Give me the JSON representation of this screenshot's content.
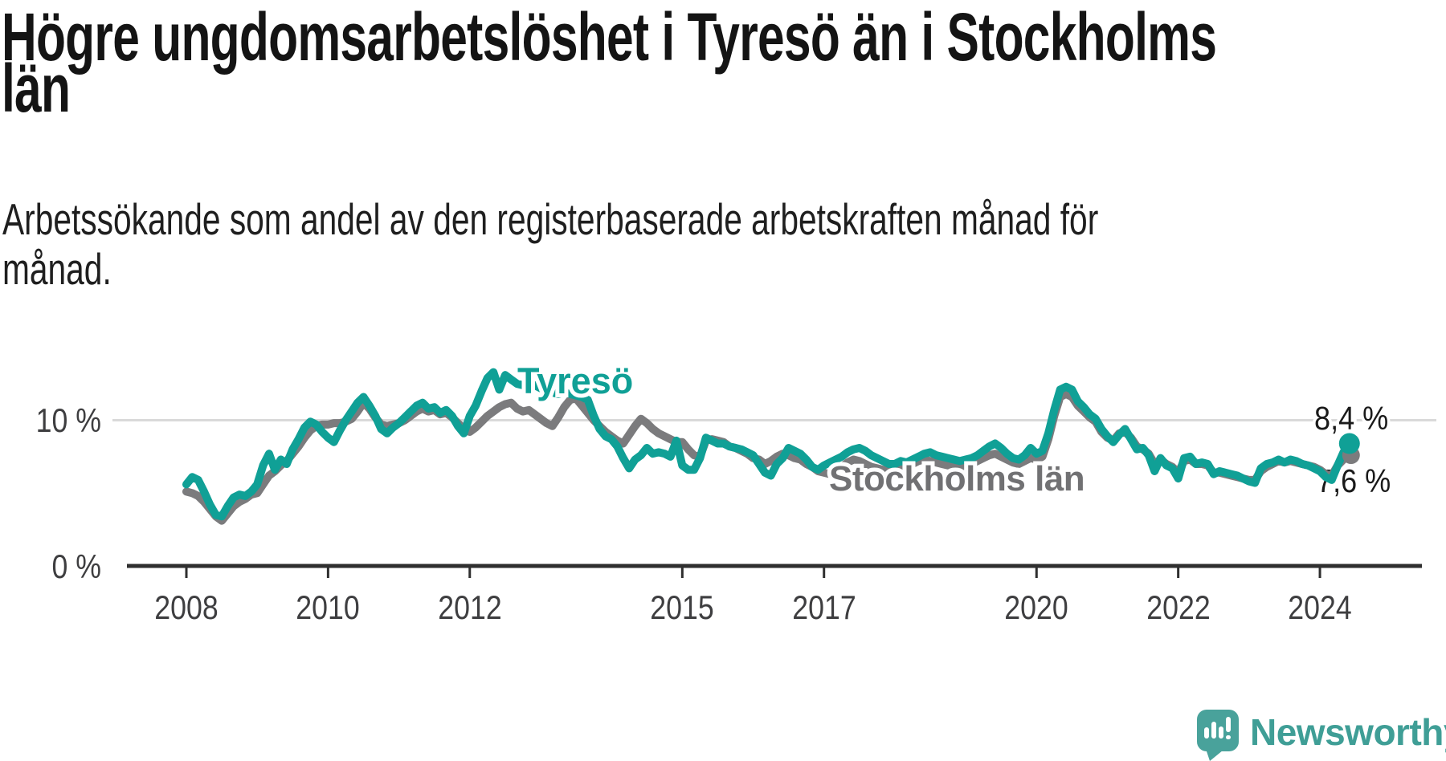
{
  "header": {
    "title_lines": [
      "Högre ungdomsarbetslöshet i Tyresö än i Stockholms",
      "län"
    ],
    "subtitle_lines": [
      "Arbetssökande som andel av den registerbaserade arbetskraften månad för",
      "månad."
    ]
  },
  "chart_data": {
    "type": "line",
    "title": "Högre ungdomsarbetslöshet i Tyresö än i Stockholms län",
    "subtitle": "Arbetssökande som andel av den registerbaserade arbetskraften månad för månad.",
    "x_start_year": 2008,
    "x_frequency": "monthly",
    "x_end": "2024-06",
    "ylim": [
      0,
      13.5
    ],
    "grid": "horizontal-10-only",
    "y_tick_labels": [
      "0 %",
      "10 %"
    ],
    "y_tick_values": [
      0,
      10
    ],
    "x_tick_years": [
      2008,
      2010,
      2012,
      2015,
      2017,
      2020,
      2022,
      2024
    ],
    "series": [
      {
        "name": "Stockholms län",
        "color": "#7b7b7d",
        "end_value_label": "7,6 %",
        "values": [
          5.1,
          5.0,
          4.8,
          4.4,
          3.9,
          3.4,
          3.1,
          3.6,
          4.1,
          4.4,
          4.6,
          4.9,
          5.0,
          5.6,
          6.2,
          6.5,
          6.9,
          7.2,
          7.7,
          8.2,
          8.8,
          9.3,
          9.6,
          9.7,
          9.7,
          9.8,
          9.8,
          9.9,
          10.1,
          10.6,
          11.2,
          10.8,
          10.2,
          9.7,
          9.6,
          9.7,
          9.8,
          10.0,
          10.3,
          10.6,
          10.8,
          10.6,
          10.7,
          10.4,
          10.5,
          10.2,
          9.8,
          9.4,
          9.2,
          9.5,
          9.9,
          10.3,
          10.6,
          10.9,
          11.1,
          11.2,
          10.8,
          10.6,
          10.7,
          10.4,
          10.1,
          9.8,
          9.6,
          10.2,
          10.9,
          11.4,
          11.5,
          11.0,
          10.5,
          10.0,
          9.6,
          9.2,
          8.9,
          8.6,
          8.4,
          9.0,
          9.6,
          10.1,
          9.8,
          9.4,
          9.1,
          8.9,
          8.7,
          8.5,
          8.5,
          8.0,
          7.6,
          7.5,
          8.6,
          8.7,
          8.6,
          8.5,
          8.2,
          8.1,
          7.9,
          7.7,
          7.4,
          7.3,
          7.0,
          7.2,
          7.5,
          7.7,
          7.6,
          7.4,
          7.3,
          7.0,
          6.8,
          6.5,
          6.4,
          6.3,
          6.5,
          6.8,
          7.1,
          7.3,
          7.2,
          7.0,
          6.8,
          6.7,
          6.6,
          6.5,
          6.6,
          6.7,
          6.8,
          7.0,
          7.2,
          7.3,
          7.2,
          7.1,
          7.0,
          6.9,
          6.9,
          6.8,
          6.9,
          7.0,
          7.2,
          7.4,
          7.6,
          7.7,
          7.5,
          7.3,
          7.1,
          7.0,
          7.2,
          7.4,
          7.3,
          7.5,
          8.7,
          10.3,
          11.6,
          11.8,
          11.6,
          11.0,
          10.6,
          10.2,
          9.9,
          9.2,
          8.8,
          8.6,
          9.1,
          9.2,
          8.8,
          8.2,
          8.0,
          7.7,
          7.0,
          7.3,
          7.0,
          6.8,
          6.4,
          7.2,
          7.3,
          7.0,
          7.0,
          6.9,
          6.4,
          6.4,
          6.3,
          6.2,
          6.1,
          6.0,
          5.9,
          5.9,
          6.5,
          6.8,
          7.0,
          7.2,
          7.1,
          7.2,
          7.1,
          7.0,
          6.9,
          6.8,
          6.6,
          6.3,
          6.2,
          6.9,
          7.3,
          7.6
        ]
      },
      {
        "name": "Tyresö",
        "color": "#10a096",
        "end_value_label": "8,4 %",
        "values": [
          5.6,
          6.1,
          5.9,
          5.1,
          4.2,
          3.5,
          3.4,
          4.1,
          4.7,
          4.9,
          4.8,
          5.1,
          5.6,
          6.9,
          7.7,
          6.6,
          7.3,
          7.0,
          8.0,
          8.7,
          9.5,
          9.9,
          9.7,
          9.2,
          8.8,
          8.5,
          9.3,
          10.0,
          10.6,
          11.2,
          11.6,
          11.0,
          10.3,
          9.4,
          9.1,
          9.5,
          9.8,
          10.2,
          10.6,
          11.0,
          11.2,
          10.8,
          10.9,
          10.5,
          10.7,
          10.3,
          9.6,
          9.1,
          10.3,
          11.0,
          12.0,
          12.9,
          13.3,
          12.1,
          13.1,
          12.8,
          12.5,
          12.4,
          12.3,
          12.4,
          12.2,
          12.0,
          11.9,
          11.8,
          11.9,
          11.8,
          11.7,
          11.6,
          11.4,
          10.3,
          9.4,
          8.9,
          8.7,
          8.2,
          7.4,
          6.7,
          7.3,
          7.6,
          8.1,
          7.7,
          7.8,
          7.7,
          7.5,
          8.6,
          6.9,
          6.6,
          6.6,
          7.4,
          8.8,
          8.6,
          8.4,
          8.4,
          8.2,
          8.1,
          8.0,
          7.8,
          7.6,
          7.0,
          6.4,
          6.2,
          7.0,
          7.4,
          8.1,
          7.9,
          7.7,
          7.3,
          6.8,
          6.6,
          6.9,
          7.1,
          7.3,
          7.5,
          7.8,
          8.0,
          8.1,
          7.9,
          7.6,
          7.4,
          7.2,
          7.0,
          7.0,
          7.2,
          7.1,
          7.3,
          7.5,
          7.7,
          7.8,
          7.6,
          7.5,
          7.4,
          7.3,
          7.2,
          7.3,
          7.4,
          7.6,
          7.9,
          8.2,
          8.4,
          8.1,
          7.7,
          7.4,
          7.3,
          7.6,
          8.1,
          7.7,
          7.9,
          9.1,
          10.7,
          12.1,
          12.3,
          12.1,
          11.3,
          10.9,
          10.4,
          10.1,
          9.4,
          8.9,
          8.5,
          9.0,
          9.4,
          8.7,
          8.0,
          8.1,
          7.6,
          6.5,
          7.4,
          6.9,
          6.7,
          6.0,
          7.4,
          7.5,
          7.0,
          7.1,
          7.0,
          6.3,
          6.5,
          6.4,
          6.3,
          6.2,
          6.0,
          5.8,
          5.7,
          6.7,
          7.0,
          7.1,
          7.3,
          7.1,
          7.3,
          7.2,
          7.0,
          6.9,
          6.7,
          6.5,
          6.1,
          5.9,
          6.9,
          7.8,
          8.4
        ]
      }
    ],
    "end_labels": [
      {
        "text": "8,4 %",
        "series": "Tyresö"
      },
      {
        "text": "7,6 %",
        "series": "Stockholms län"
      }
    ],
    "colors": {
      "tyreso": "#10a096",
      "stockholm": "#7b7b7d",
      "gridline": "#d9d9d9",
      "axis": "#2f2f2f",
      "tick_text": "#3e3e40"
    }
  },
  "branding": {
    "logo_text": "Newsworthy",
    "logo_color": "#49a29b"
  }
}
